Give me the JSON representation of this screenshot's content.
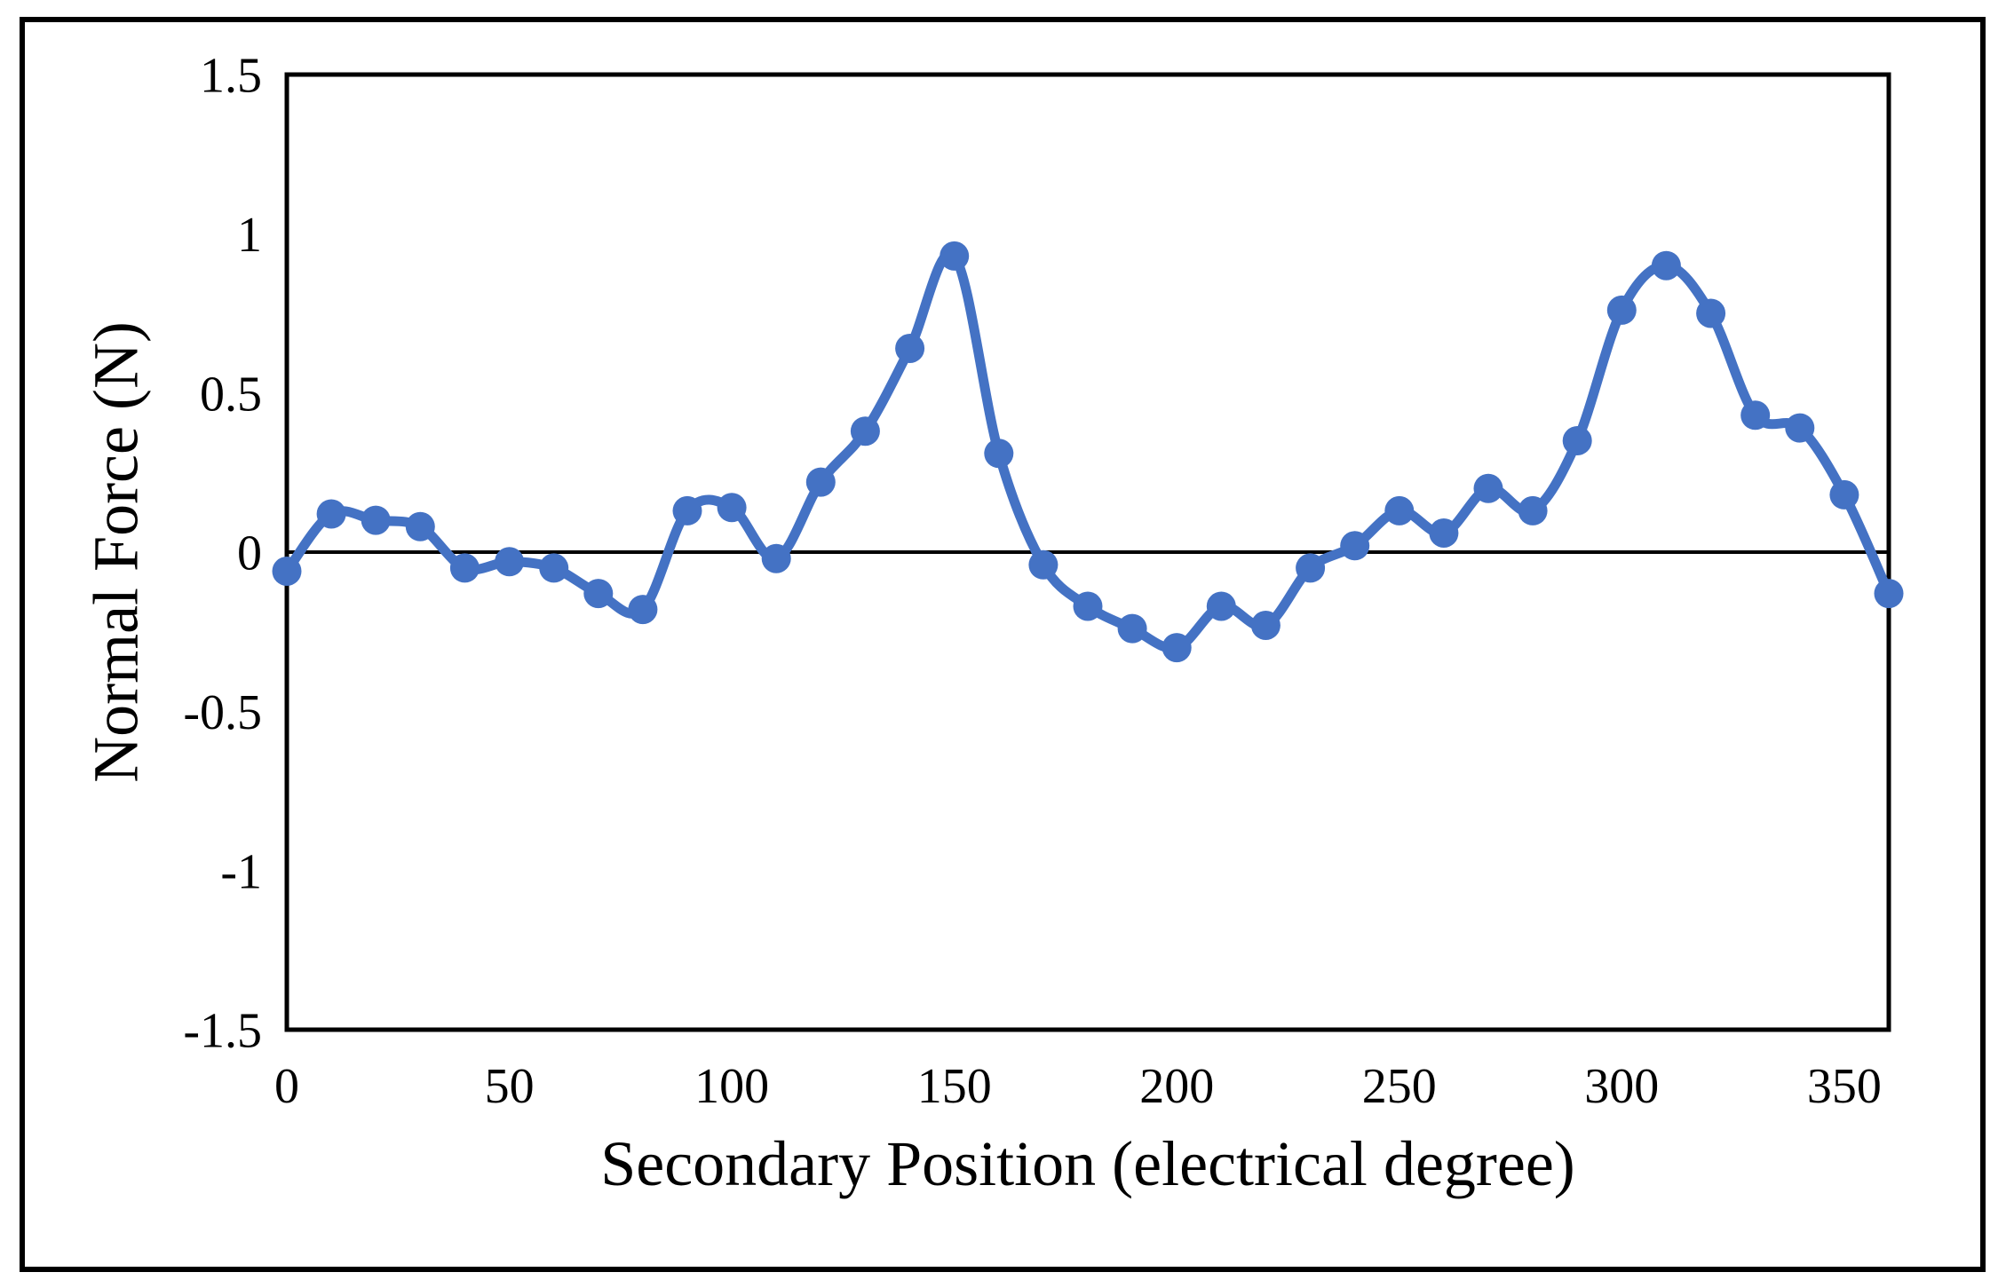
{
  "figure": {
    "background": "#ffffff",
    "border_color": "#000000"
  },
  "chart_data": {
    "type": "line",
    "title": "",
    "xlabel": "Secondary Position (electrical degree)",
    "ylabel": "Normal Force (N)",
    "x": [
      0,
      10,
      20,
      30,
      40,
      50,
      60,
      70,
      80,
      90,
      100,
      110,
      120,
      130,
      140,
      150,
      160,
      170,
      180,
      190,
      200,
      210,
      220,
      230,
      240,
      250,
      260,
      270,
      280,
      290,
      300,
      310,
      320,
      330,
      340,
      350,
      360
    ],
    "series": [
      {
        "name": "Normal Force",
        "values": [
          -0.06,
          0.12,
          0.1,
          0.08,
          -0.05,
          -0.03,
          -0.05,
          -0.13,
          -0.18,
          0.13,
          0.14,
          -0.02,
          0.22,
          0.38,
          0.64,
          0.93,
          0.31,
          -0.04,
          -0.17,
          -0.24,
          -0.3,
          -0.17,
          -0.23,
          -0.05,
          0.02,
          0.13,
          0.06,
          0.2,
          0.13,
          0.35,
          0.76,
          0.9,
          0.75,
          0.43,
          0.39,
          0.18,
          -0.13
        ]
      }
    ],
    "xlim": [
      0,
      360
    ],
    "ylim": [
      -1.5,
      1.5
    ],
    "x_ticks": [
      0,
      50,
      100,
      150,
      200,
      250,
      300,
      350
    ],
    "x_tick_labels": [
      "0",
      "50",
      "100",
      "150",
      "200",
      "250",
      "300",
      "350"
    ],
    "y_ticks": [
      1.5,
      1,
      0.5,
      0,
      -0.5,
      -1,
      -1.5
    ],
    "y_tick_labels": [
      "1.5",
      "1",
      "0.5",
      "0",
      "-0.5",
      "-1",
      "-1.5"
    ],
    "grid": false,
    "zero_line": true,
    "legend": "none",
    "line_color": "#4472C4",
    "marker": "circle",
    "axis_color": "#000000",
    "smooth": true
  }
}
